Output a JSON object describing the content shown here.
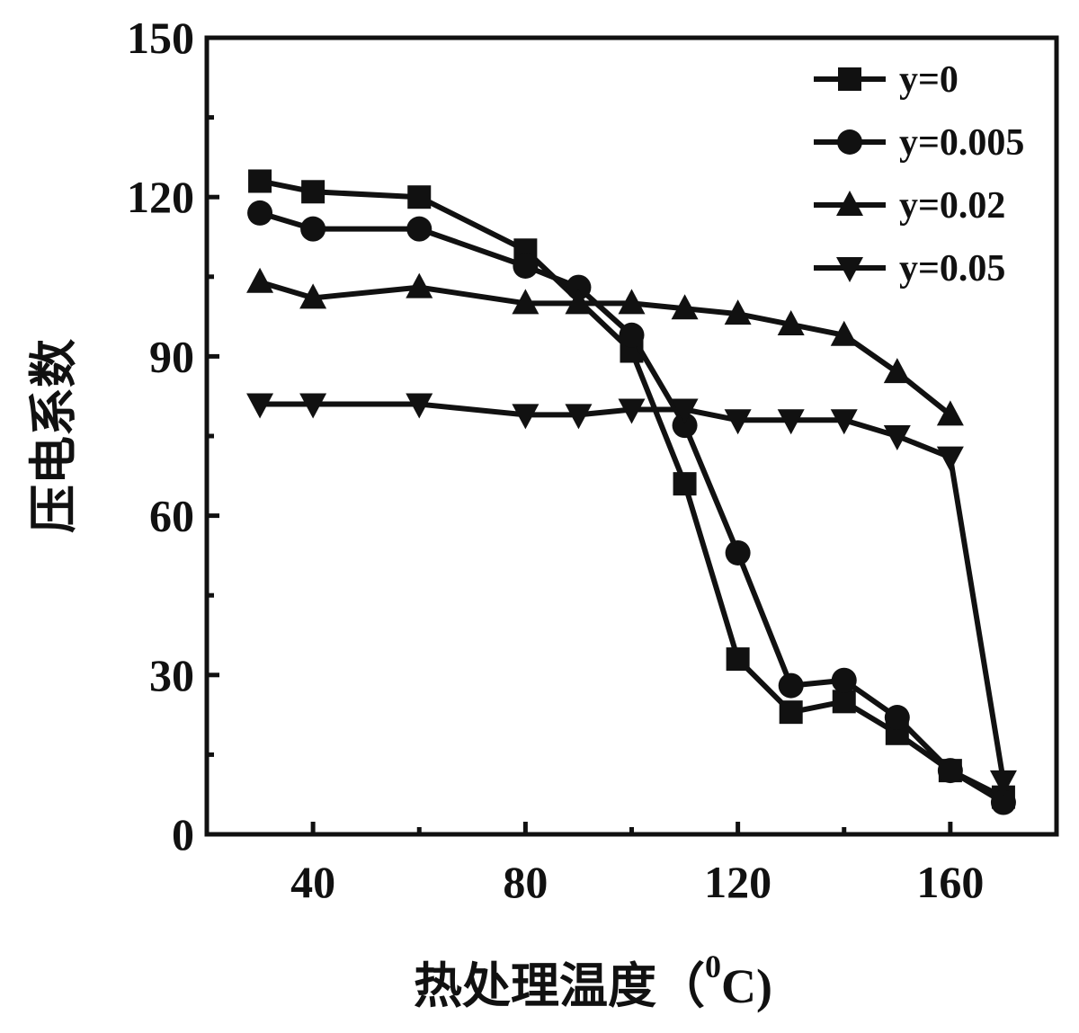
{
  "chart_data": {
    "type": "line",
    "xlabel": "热处理温度",
    "xlabel_unit_sup": "0",
    "xlabel_unit": "C",
    "ylabel": "压电系数",
    "xlim": [
      20,
      180
    ],
    "ylim": [
      0,
      150
    ],
    "xticks": [
      40,
      80,
      120,
      160
    ],
    "yticks": [
      0,
      30,
      60,
      90,
      120,
      150
    ],
    "grid": false,
    "legend_position": "top-right",
    "series": [
      {
        "name": "y=0",
        "marker": "square",
        "x": [
          30,
          40,
          60,
          80,
          100,
          110,
          120,
          130,
          140,
          150,
          160,
          170
        ],
        "y": [
          123,
          121,
          120,
          110,
          91,
          66,
          33,
          23,
          25,
          19,
          12,
          7
        ]
      },
      {
        "name": "y=0.005",
        "marker": "circle",
        "x": [
          30,
          40,
          60,
          80,
          90,
          100,
          110,
          120,
          130,
          140,
          150,
          160,
          170
        ],
        "y": [
          117,
          114,
          114,
          107,
          103,
          94,
          77,
          53,
          28,
          29,
          22,
          12,
          6
        ]
      },
      {
        "name": "y=0.02",
        "marker": "triangle-up",
        "x": [
          30,
          40,
          60,
          80,
          90,
          100,
          110,
          120,
          130,
          140,
          150,
          160
        ],
        "y": [
          104,
          101,
          103,
          100,
          100,
          100,
          99,
          98,
          96,
          94,
          87,
          79
        ]
      },
      {
        "name": "y=0.05",
        "marker": "triangle-down",
        "x": [
          30,
          40,
          60,
          80,
          90,
          100,
          110,
          120,
          130,
          140,
          150,
          160,
          170
        ],
        "y": [
          81,
          81,
          81,
          79,
          79,
          80,
          80,
          78,
          78,
          78,
          75,
          71,
          10
        ]
      }
    ]
  }
}
